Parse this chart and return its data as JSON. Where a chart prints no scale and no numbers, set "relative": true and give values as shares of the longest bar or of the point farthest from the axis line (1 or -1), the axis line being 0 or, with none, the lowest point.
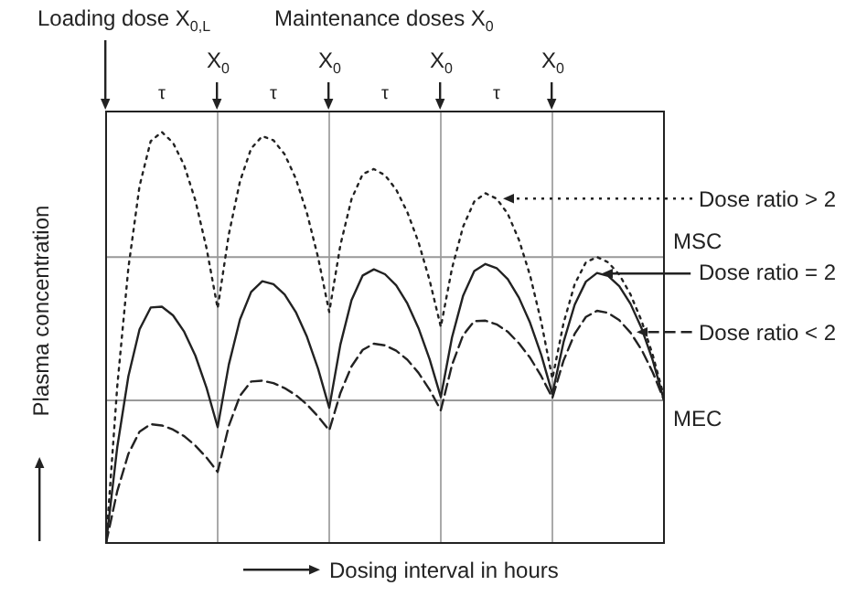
{
  "chart_data": {
    "type": "line",
    "relative": true,
    "marker": "none",
    "grid": "x",
    "legend": "right",
    "xlabel": "Dosing interval in hours",
    "ylabel": "Plasma concentration",
    "categories": [
      null,
      null,
      null,
      null,
      null,
      null,
      null,
      null,
      null,
      null,
      null,
      null,
      null,
      null,
      null,
      null,
      null,
      null,
      null,
      null,
      null,
      null,
      null,
      null,
      null,
      null,
      null,
      null,
      null,
      null,
      null,
      null,
      null,
      null,
      null,
      null,
      null,
      null,
      null,
      null,
      null,
      null,
      null,
      null,
      null,
      null,
      null,
      null,
      null,
      null,
      null
    ],
    "series": [
      {
        "name": "Dose ratio > 2",
        "color": "#222222",
        "line_style": "dotted",
        "values": [
          0,
          0.381,
          0.67,
          0.869,
          0.978,
          1,
          0.974,
          0.919,
          0.834,
          0.718,
          0.571,
          0.751,
          0.88,
          0.96,
          0.99,
          0.98,
          0.946,
          0.887,
          0.803,
          0.695,
          0.562,
          0.725,
          0.837,
          0.898,
          0.91,
          0.895,
          0.86,
          0.805,
          0.732,
          0.639,
          0.526,
          0.668,
          0.77,
          0.831,
          0.851,
          0.838,
          0.801,
          0.738,
          0.651,
          0.538,
          0.4,
          0.535,
          0.63,
          0.683,
          0.696,
          0.683,
          0.653,
          0.605,
          0.54,
          0.457,
          0.356
        ]
      },
      {
        "name": "Dose ratio = 2",
        "color": "#222222",
        "line_style": "solid",
        "values": [
          0,
          0.233,
          0.406,
          0.52,
          0.573,
          0.575,
          0.554,
          0.514,
          0.456,
          0.378,
          0.282,
          0.434,
          0.544,
          0.611,
          0.637,
          0.63,
          0.605,
          0.562,
          0.502,
          0.424,
          0.329,
          0.483,
          0.591,
          0.651,
          0.666,
          0.654,
          0.627,
          0.583,
          0.523,
          0.447,
          0.355,
          0.5,
          0.602,
          0.662,
          0.679,
          0.669,
          0.642,
          0.597,
          0.536,
          0.458,
          0.363,
          0.489,
          0.58,
          0.636,
          0.657,
          0.65,
          0.625,
          0.582,
          0.522,
          0.444,
          0.348
        ]
      },
      {
        "name": "Dose ratio < 2",
        "color": "#222222",
        "line_style": "dashed",
        "values": [
          0,
          0.126,
          0.217,
          0.271,
          0.289,
          0.286,
          0.276,
          0.26,
          0.237,
          0.208,
          0.173,
          0.285,
          0.358,
          0.393,
          0.395,
          0.389,
          0.377,
          0.36,
          0.337,
          0.308,
          0.274,
          0.365,
          0.43,
          0.47,
          0.485,
          0.481,
          0.468,
          0.446,
          0.414,
          0.373,
          0.323,
          0.433,
          0.506,
          0.54,
          0.541,
          0.532,
          0.514,
          0.486,
          0.451,
          0.406,
          0.353,
          0.444,
          0.509,
          0.55,
          0.565,
          0.56,
          0.542,
          0.512,
          0.47,
          0.415,
          0.348
        ]
      }
    ],
    "ref_lines": [
      {
        "axis": "y",
        "value": 0.696,
        "label": "MSC",
        "color": "#999999"
      },
      {
        "axis": "y",
        "value": 0.347,
        "label": "MEC",
        "color": "#999999"
      }
    ],
    "annotations": [
      "Loading dose X$_{0,L}$",
      "Maintenance doses X$_{0}$",
      "X$_{0}$",
      "X$_{0}$",
      "X$_{0}$",
      "X$_{0}$",
      "τ",
      "τ",
      "τ",
      "τ"
    ]
  }
}
